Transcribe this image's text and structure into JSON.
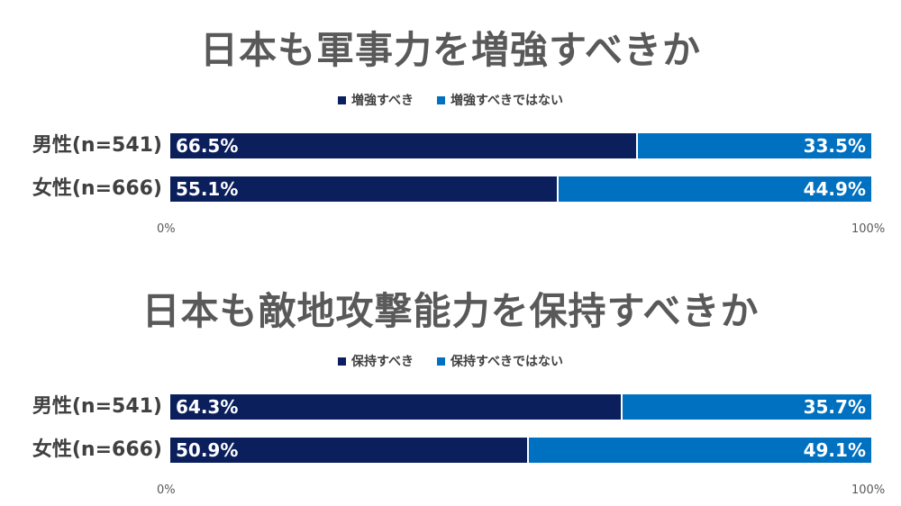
{
  "colors": {
    "series_a": "#0b1f5c",
    "series_b": "#0070c0"
  },
  "chart_data": [
    {
      "type": "bar",
      "orientation": "horizontal",
      "stacked": true,
      "title": "日本も軍事力を増強すべきか",
      "legend_position": "top",
      "categories": [
        "男性(n=541)",
        "女性(n=666)"
      ],
      "series": [
        {
          "name": "増強すべき",
          "values": [
            66.5,
            55.1
          ],
          "labels": [
            "66.5%",
            "55.1%"
          ]
        },
        {
          "name": "増強すべきではない",
          "values": [
            33.5,
            44.9
          ],
          "labels": [
            "33.5%",
            "44.9%"
          ]
        }
      ],
      "xlim": [
        0,
        100
      ],
      "ticks": [
        "0%",
        "100%"
      ]
    },
    {
      "type": "bar",
      "orientation": "horizontal",
      "stacked": true,
      "title": "日本も敵地攻撃能力を保持すべきか",
      "legend_position": "top",
      "categories": [
        "男性(n=541)",
        "女性(n=666)"
      ],
      "series": [
        {
          "name": "保持すべき",
          "values": [
            64.3,
            50.9
          ],
          "labels": [
            "64.3%",
            "50.9%"
          ]
        },
        {
          "name": "保持すべきではない",
          "values": [
            35.7,
            49.1
          ],
          "labels": [
            "35.7%",
            "49.1%"
          ]
        }
      ],
      "xlim": [
        0,
        100
      ],
      "ticks": [
        "0%",
        "100%"
      ]
    }
  ]
}
